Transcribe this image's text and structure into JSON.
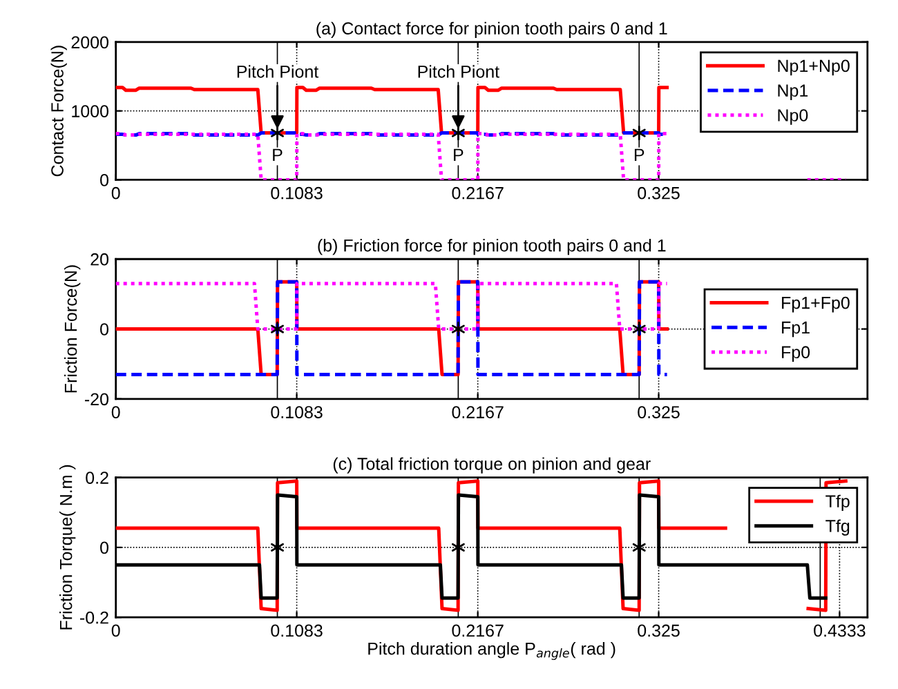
{
  "chart_data": [
    {
      "type": "line",
      "title": "(a) Contact force for pinion tooth pairs 0 and 1",
      "ylabel": "Contact Force(N)",
      "xlim": [
        0,
        0.45
      ],
      "xticks": [
        0,
        0.1083,
        0.2167,
        0.325
      ],
      "ylim": [
        0,
        2000
      ],
      "yticks": [
        0,
        1000,
        2000
      ],
      "grid": true,
      "legend": "top right",
      "series": [
        {
          "name": "Np1+Np0",
          "color": "#ff0000",
          "line_style": "solid",
          "x": [
            0,
            0.004,
            0.006,
            0.012,
            0.014,
            0.045,
            0.047,
            0.085,
            0.087,
            0.1083,
            0.1084,
            0.112,
            0.114,
            0.12,
            0.122,
            0.153,
            0.155,
            0.193,
            0.195,
            0.2167,
            0.2168,
            0.221,
            0.223,
            0.229,
            0.231,
            0.262,
            0.264,
            0.302,
            0.304,
            0.325,
            0.3251,
            0.33
          ],
          "values": [
            1340,
            1340,
            1300,
            1300,
            1330,
            1330,
            1310,
            1310,
            680,
            680,
            1340,
            1340,
            1300,
            1300,
            1330,
            1330,
            1310,
            1310,
            680,
            680,
            1340,
            1340,
            1300,
            1300,
            1330,
            1330,
            1310,
            1310,
            680,
            680,
            1340,
            1340
          ]
        },
        {
          "name": "Np1",
          "color": "#0000ff",
          "line_style": "dashed",
          "x": [
            0,
            0.004,
            0.006,
            0.012,
            0.014,
            0.045,
            0.047,
            0.085,
            0.087,
            0.1083,
            0.1084,
            0.112,
            0.114,
            0.12,
            0.122,
            0.153,
            0.155,
            0.193,
            0.195,
            0.2167,
            0.2168,
            0.221,
            0.223,
            0.229,
            0.231,
            0.262,
            0.264,
            0.302,
            0.304,
            0.325,
            0.3251,
            0.33
          ],
          "values": [
            660,
            660,
            650,
            650,
            670,
            670,
            650,
            650,
            680,
            680,
            660,
            660,
            650,
            650,
            670,
            670,
            650,
            650,
            680,
            680,
            660,
            660,
            650,
            650,
            670,
            670,
            650,
            650,
            680,
            680,
            660,
            660
          ]
        },
        {
          "name": "Np0",
          "color": "#ff00ff",
          "line_style": "dotted",
          "x": [
            0,
            0.004,
            0.006,
            0.012,
            0.014,
            0.045,
            0.047,
            0.085,
            0.087,
            0.1083,
            0.1084,
            0.112,
            0.114,
            0.12,
            0.122,
            0.153,
            0.155,
            0.193,
            0.195,
            0.2167,
            0.2168,
            0.221,
            0.223,
            0.229,
            0.231,
            0.262,
            0.264,
            0.302,
            0.304,
            0.325,
            0.3251,
            0.33,
            0.37,
            0.414,
            0.437
          ],
          "values": [
            670,
            670,
            650,
            650,
            660,
            660,
            660,
            660,
            0,
            0,
            670,
            670,
            650,
            650,
            660,
            660,
            660,
            660,
            0,
            0,
            670,
            670,
            650,
            650,
            660,
            660,
            660,
            660,
            0,
            0,
            670,
            670,
            null,
            0,
            0
          ]
        },
        {
          "type": "scatter",
          "color": "#000000",
          "x": [
            0.0967,
            0.205,
            0.3133
          ],
          "values": [
            680,
            680,
            680
          ],
          "marker": "cross"
        }
      ],
      "ref_lines": [
        {
          "axis": "x",
          "value": 0.0967,
          "color": "#000000"
        },
        {
          "axis": "x",
          "value": 0.205,
          "color": "#000000"
        },
        {
          "axis": "x",
          "value": 0.3133,
          "color": "#000000"
        }
      ],
      "annotations": [
        {
          "text": "P",
          "x": 0.0967,
          "y": 680
        },
        {
          "text": "P",
          "x": 0.205,
          "y": 680
        },
        {
          "text": "P",
          "x": 0.3133,
          "y": 680
        },
        {
          "text": "Pitch Piont",
          "x": 0.0967,
          "y": 680
        },
        {
          "text": "Pitch Piont",
          "x": 0.205,
          "y": 680
        }
      ]
    },
    {
      "type": "line",
      "title": "(b) Friction force for pinion tooth pairs 0 and 1",
      "ylabel": "Friction Force(N)",
      "xlim": [
        0,
        0.45
      ],
      "xticks": [
        0,
        0.1083,
        0.2167,
        0.325
      ],
      "ylim": [
        -20,
        20
      ],
      "yticks": [
        -20,
        0,
        20
      ],
      "grid": true,
      "legend": "right",
      "series": [
        {
          "name": "Fp1+Fp0",
          "color": "#ff0000",
          "line_style": "solid",
          "x": [
            0,
            0.085,
            0.087,
            0.0966,
            0.0968,
            0.1083,
            0.1084,
            0.1933,
            0.1953,
            0.2049,
            0.2051,
            0.2167,
            0.2168,
            0.3017,
            0.3037,
            0.3133,
            0.3135,
            0.325,
            0.3251,
            0.33
          ],
          "values": [
            0,
            0,
            -13,
            -13,
            13.5,
            13.5,
            0,
            0,
            -13,
            -13,
            13.5,
            13.5,
            0,
            0,
            -13,
            -13,
            13.5,
            13.5,
            0,
            0
          ]
        },
        {
          "name": "Fp1",
          "color": "#0000ff",
          "line_style": "dashed",
          "x": [
            0,
            0.085,
            0.087,
            0.0966,
            0.0968,
            0.1083,
            0.1084,
            0.1933,
            0.1953,
            0.2049,
            0.2051,
            0.2167,
            0.2168,
            0.3017,
            0.3037,
            0.3133,
            0.3135,
            0.325,
            0.3251,
            0.33
          ],
          "values": [
            -13,
            -13,
            -13,
            -13,
            13.5,
            13.5,
            -13,
            -13,
            -13,
            -13,
            13.5,
            13.5,
            -13,
            -13,
            -13,
            -13,
            13.5,
            13.5,
            -13,
            -13
          ]
        },
        {
          "name": "Fp0",
          "color": "#ff00ff",
          "line_style": "dotted",
          "x": [
            0,
            0.083,
            0.085,
            0.0966,
            0.0968,
            0.1083,
            0.1084,
            0.1913,
            0.1933,
            0.2049,
            0.2051,
            0.2167,
            0.2168,
            0.2997,
            0.3017,
            0.3133,
            0.3135,
            0.325,
            0.3251,
            0.33
          ],
          "values": [
            13,
            13,
            0,
            0,
            0,
            0,
            13,
            13,
            0,
            0,
            0,
            0,
            13,
            13,
            0,
            0,
            0,
            0,
            13,
            13
          ]
        },
        {
          "type": "scatter",
          "color": "#000000",
          "marker": "cross",
          "x": [
            0.0967,
            0.205,
            0.3133
          ],
          "values": [
            0,
            0,
            0
          ]
        }
      ],
      "ref_lines": [
        {
          "axis": "x",
          "value": 0.0967,
          "color": "#000000"
        },
        {
          "axis": "x",
          "value": 0.205,
          "color": "#000000"
        },
        {
          "axis": "x",
          "value": 0.3133,
          "color": "#000000"
        }
      ]
    },
    {
      "type": "line",
      "title": "(c) Total friction torque on pinion and gear",
      "ylabel": "Friction Torque( N.m )",
      "xlabel": "Pitch duration angle P$_{angle}$( rad )",
      "xlim": [
        0,
        0.45
      ],
      "xticks": [
        0,
        0.1083,
        0.2167,
        0.325,
        0.4333
      ],
      "ylim": [
        -0.2,
        0.2
      ],
      "yticks": [
        -0.2,
        0,
        0.2
      ],
      "grid": true,
      "legend": "top right",
      "series": [
        {
          "name": "Tfp",
          "color": "#ff0000",
          "line_style": "solid",
          "x": [
            0,
            0.085,
            0.087,
            0.0966,
            0.0968,
            0.1083,
            0.1084,
            0.1933,
            0.1953,
            0.2049,
            0.2051,
            0.2167,
            0.2168,
            0.3017,
            0.3037,
            0.3133,
            0.3135,
            0.325,
            0.3251,
            0.365,
            0.39,
            0.4145,
            0.425,
            0.4252,
            0.437
          ],
          "values": [
            0.055,
            0.055,
            -0.175,
            -0.18,
            0.185,
            0.19,
            0.055,
            0.055,
            -0.175,
            -0.18,
            0.185,
            0.19,
            0.055,
            0.055,
            -0.175,
            -0.18,
            0.185,
            0.19,
            0.055,
            0.055,
            null,
            -0.175,
            -0.18,
            0.185,
            0.19
          ]
        },
        {
          "name": "Tfg",
          "color": "#000000",
          "line_style": "solid",
          "x": [
            0,
            0.086,
            0.087,
            0.0966,
            0.0968,
            0.1083,
            0.1084,
            0.1943,
            0.1953,
            0.2049,
            0.2051,
            0.2167,
            0.2168,
            0.3027,
            0.3037,
            0.3133,
            0.3135,
            0.325,
            0.3251,
            0.414,
            0.4155,
            0.425
          ],
          "values": [
            -0.05,
            -0.05,
            -0.145,
            -0.145,
            0.15,
            0.145,
            -0.05,
            -0.05,
            -0.145,
            -0.145,
            0.15,
            0.145,
            -0.05,
            -0.05,
            -0.145,
            -0.145,
            0.15,
            0.145,
            -0.05,
            -0.05,
            -0.145,
            -0.145
          ]
        },
        {
          "type": "scatter",
          "color": "#000000",
          "marker": "cross",
          "x": [
            0.0967,
            0.205,
            0.3133
          ],
          "values": [
            0,
            0,
            0
          ]
        }
      ],
      "ref_lines": [
        {
          "axis": "x",
          "value": 0.0967,
          "color": "#000000"
        },
        {
          "axis": "x",
          "value": 0.205,
          "color": "#000000"
        },
        {
          "axis": "x",
          "value": 0.3133,
          "color": "#000000"
        },
        {
          "axis": "x",
          "value": 0.4217,
          "color": "#000000"
        }
      ]
    }
  ]
}
